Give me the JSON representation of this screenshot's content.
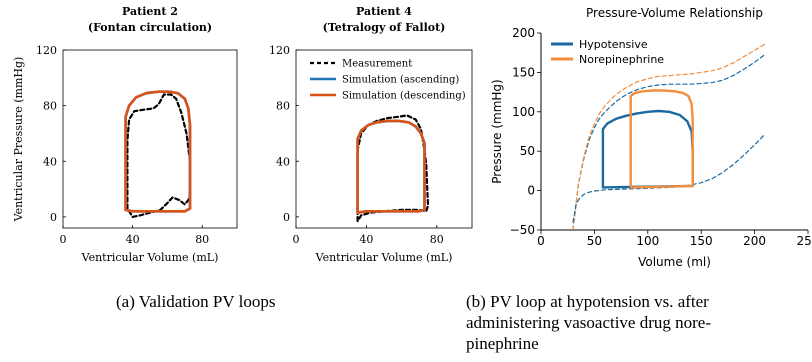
{
  "colors": {
    "measurement": "#000000",
    "sim_ascending": "#1f77b4",
    "sim_descending": "#d95319",
    "hypotensive": "#1a6aa0",
    "norepinephrine": "#f28e3c"
  },
  "captions": {
    "a": "(a) Validation PV loops",
    "b_lines": [
      "(b) PV loop at hypotension vs. after",
      "administering vasoactive drug nore-",
      "pinephrine"
    ]
  },
  "chart_data": [
    {
      "type": "line",
      "title": "Patient 2",
      "subtitle": "(Fontan circulation)",
      "xlabel": "Ventricular Volume (mL)",
      "ylabel": "Ventricular Pressure (mmHg)",
      "xlim": [
        0,
        100
      ],
      "ylim": [
        -8,
        120
      ],
      "xticks": [
        "0",
        "40",
        "80"
      ],
      "yticks": [
        "0",
        "40",
        "80",
        "120"
      ],
      "grid": false,
      "series": [
        {
          "name": "Measurement",
          "style": "dashed",
          "x": [
            37,
            37,
            38,
            41,
            46,
            52,
            55,
            58,
            62,
            65,
            68,
            71,
            73,
            73,
            72,
            70,
            67,
            63,
            60,
            56,
            50,
            44,
            40,
            37
          ],
          "y": [
            6,
            55,
            70,
            76,
            77,
            78,
            81,
            88,
            88,
            85,
            75,
            60,
            40,
            16,
            12,
            9,
            12,
            14,
            10,
            5,
            3,
            1,
            0,
            6
          ]
        },
        {
          "name": "Simulation (ascending)",
          "style": "solid",
          "x": [
            36,
            36,
            38,
            42,
            48,
            55,
            61,
            66,
            70,
            72,
            73,
            73,
            70,
            60,
            50,
            40,
            36
          ],
          "y": [
            5,
            72,
            80,
            86,
            89,
            90,
            90,
            89,
            85,
            78,
            66,
            6,
            4,
            4,
            4,
            4,
            5
          ]
        },
        {
          "name": "Simulation (descending)",
          "style": "solid",
          "x": [
            36,
            36,
            38,
            42,
            48,
            55,
            61,
            66,
            70,
            72,
            73,
            73,
            70,
            60,
            50,
            40,
            36
          ],
          "y": [
            5,
            72,
            80,
            86,
            89,
            90,
            90,
            89,
            85,
            78,
            66,
            6,
            4,
            4,
            4,
            4,
            5
          ]
        }
      ]
    },
    {
      "type": "line",
      "title": "Patient 4",
      "subtitle": "(Tetralogy of Fallot)",
      "xlabel": "Ventricular Volume (mL)",
      "ylabel": "",
      "xlim": [
        0,
        100
      ],
      "ylim": [
        -8,
        120
      ],
      "xticks": [
        "0",
        "40",
        "80"
      ],
      "yticks": [
        "0",
        "40",
        "80",
        "120"
      ],
      "grid": false,
      "legend": {
        "position": "top-right",
        "entries": [
          "Measurement",
          "Simulation (ascending)",
          "Simulation (descending)"
        ]
      },
      "series": [
        {
          "name": "Measurement",
          "style": "dashed",
          "x": [
            35,
            35,
            37,
            41,
            46,
            52,
            58,
            63,
            68,
            71,
            73,
            74,
            75,
            74,
            70,
            60,
            50,
            42,
            37,
            35
          ],
          "y": [
            -3,
            48,
            60,
            66,
            69,
            71,
            72,
            73,
            70,
            63,
            48,
            38,
            8,
            4,
            5,
            5,
            4,
            3,
            1,
            -3
          ]
        },
        {
          "name": "Simulation (ascending)",
          "style": "solid",
          "x": [
            35,
            35,
            37,
            41,
            46,
            52,
            58,
            64,
            68,
            71,
            73,
            73,
            70,
            60,
            50,
            40,
            35
          ],
          "y": [
            3,
            56,
            62,
            66,
            68,
            69,
            69,
            68,
            65,
            60,
            53,
            5,
            4,
            4,
            4,
            4,
            3
          ]
        },
        {
          "name": "Simulation (descending)",
          "style": "solid",
          "x": [
            35,
            35,
            37,
            41,
            46,
            52,
            58,
            64,
            68,
            71,
            73,
            73,
            70,
            60,
            50,
            40,
            35
          ],
          "y": [
            3,
            56,
            62,
            66,
            68,
            69,
            69,
            68,
            65,
            60,
            53,
            5,
            4,
            4,
            4,
            4,
            3
          ]
        }
      ]
    },
    {
      "type": "line",
      "title": "Pressure-Volume Relationship",
      "xlabel": "Volume (ml)",
      "ylabel": "Pressure (mmHg)",
      "xlim": [
        0,
        250
      ],
      "ylim": [
        -50,
        200
      ],
      "xticks": [
        "0",
        "50",
        "100",
        "150",
        "200",
        "250"
      ],
      "yticks": [
        "−50",
        "0",
        "50",
        "100",
        "150",
        "200"
      ],
      "grid": false,
      "legend": {
        "position": "top-left",
        "entries": [
          "Hypotensive",
          "Norepinephrine"
        ]
      },
      "series": [
        {
          "name": "Hypotensive",
          "style": "solid",
          "x": [
            58,
            58,
            62,
            70,
            80,
            90,
            100,
            110,
            120,
            130,
            137,
            141,
            142,
            142,
            58
          ],
          "y": [
            4,
            78,
            85,
            91,
            95,
            98,
            100,
            101,
            100,
            96,
            88,
            75,
            50,
            6,
            4
          ]
        },
        {
          "name": "Norepinephrine",
          "style": "solid",
          "x": [
            84,
            84,
            88,
            95,
            105,
            115,
            125,
            133,
            138,
            141,
            142,
            142,
            84
          ],
          "y": [
            4,
            120,
            124,
            126,
            127,
            127,
            126,
            124,
            120,
            110,
            90,
            6,
            4
          ]
        },
        {
          "style": "dashed",
          "role": "ESPVR hypotensive",
          "x": [
            30,
            35,
            40,
            45,
            50,
            55,
            60,
            70,
            80,
            90,
            100,
            110,
            120,
            130,
            140,
            150,
            160,
            170,
            180,
            190,
            200,
            210
          ],
          "y": [
            -50,
            8,
            40,
            64,
            80,
            92,
            100,
            113,
            122,
            128,
            132,
            134,
            135,
            135,
            135,
            136,
            137,
            140,
            146,
            154,
            163,
            173
          ]
        },
        {
          "style": "dashed",
          "role": "ESPVR norepinephrine",
          "x": [
            30,
            35,
            40,
            45,
            50,
            55,
            60,
            70,
            80,
            90,
            100,
            110,
            120,
            130,
            140,
            150,
            160,
            170,
            180,
            190,
            200,
            210
          ],
          "y": [
            -50,
            8,
            42,
            68,
            85,
            98,
            108,
            122,
            131,
            138,
            142,
            145,
            146,
            147,
            148,
            150,
            152,
            156,
            162,
            170,
            178,
            186
          ]
        },
        {
          "style": "dashed",
          "role": "EDPVR",
          "x": [
            30,
            33,
            36,
            40,
            45,
            50,
            60,
            70,
            80,
            90,
            100,
            110,
            120,
            130,
            140,
            150,
            160,
            170,
            180,
            190,
            200,
            210
          ],
          "y": [
            -40,
            -17,
            -10,
            -5,
            -2,
            -0.5,
            1,
            1.5,
            2,
            2.5,
            3,
            3.5,
            4,
            5,
            7,
            10,
            15,
            23,
            33,
            45,
            58,
            72
          ]
        }
      ]
    }
  ]
}
